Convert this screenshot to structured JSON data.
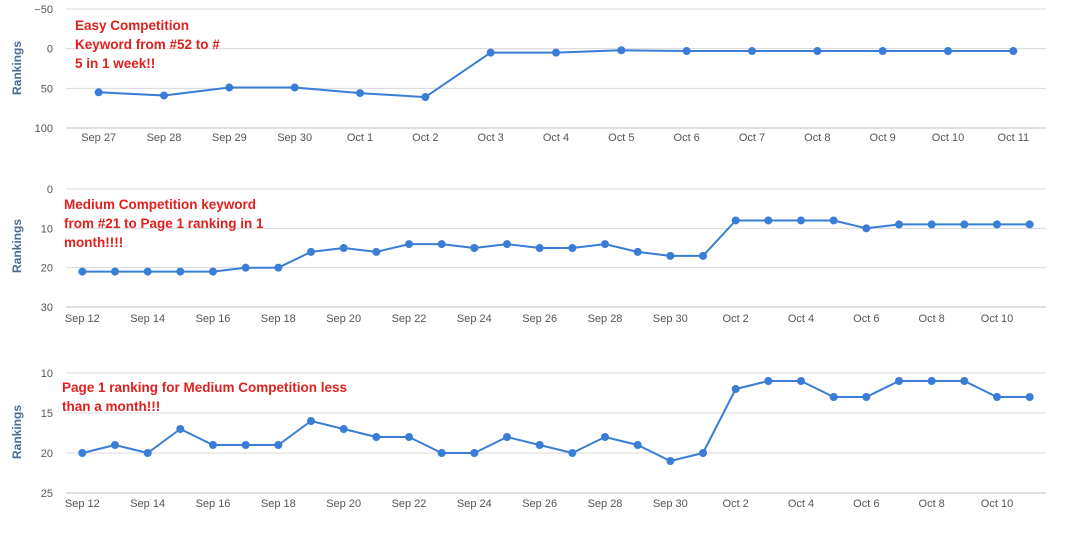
{
  "chart_data": [
    {
      "type": "line",
      "ylabel": "Rankings",
      "ylim": [
        -50,
        100
      ],
      "yticks": [
        -50,
        0,
        50,
        100
      ],
      "y_reversed": true,
      "categories": [
        "Sep 27",
        "Sep 28",
        "Sep 29",
        "Sep 30",
        "Oct 1",
        "Oct 2",
        "Oct 3",
        "Oct 4",
        "Oct 5",
        "Oct 6",
        "Oct 7",
        "Oct 8",
        "Oct 9",
        "Oct 10",
        "Oct 11"
      ],
      "tick_labels": [
        "Sep 27",
        "Sep 28",
        "Sep 29",
        "Sep 30",
        "Oct 1",
        "Oct 2",
        "Oct 3",
        "Oct 4",
        "Oct 5",
        "Oct 6",
        "Oct 7",
        "Oct 8",
        "Oct 9",
        "Oct 10",
        "Oct 11"
      ],
      "values": [
        55,
        59,
        49,
        49,
        56,
        61,
        5,
        5,
        2,
        3,
        3,
        3,
        3,
        3,
        3
      ],
      "annotation": [
        "Easy Competition",
        "Keyword from #52 to #",
        "5 in 1 week!!"
      ],
      "line_color": "#3a7dd6",
      "grid": true
    },
    {
      "type": "line",
      "ylabel": "Rankings",
      "ylim": [
        0,
        30
      ],
      "yticks": [
        0,
        10,
        20,
        30
      ],
      "y_reversed": true,
      "categories": [
        "Sep 12",
        "Sep 13",
        "Sep 14",
        "Sep 15",
        "Sep 16",
        "Sep 17",
        "Sep 18",
        "Sep 19",
        "Sep 20",
        "Sep 21",
        "Sep 22",
        "Sep 23",
        "Sep 24",
        "Sep 25",
        "Sep 26",
        "Sep 27",
        "Sep 28",
        "Sep 29",
        "Sep 30",
        "Oct 1",
        "Oct 2",
        "Oct 3",
        "Oct 4",
        "Oct 5",
        "Oct 6",
        "Oct 7",
        "Oct 8",
        "Oct 9",
        "Oct 10",
        "Oct 11"
      ],
      "tick_labels": [
        "Sep 12",
        "Sep 14",
        "Sep 16",
        "Sep 18",
        "Sep 20",
        "Sep 22",
        "Sep 24",
        "Sep 26",
        "Sep 28",
        "Sep 30",
        "Oct 2",
        "Oct 4",
        "Oct 6",
        "Oct 8",
        "Oct 10"
      ],
      "values": [
        21,
        21,
        21,
        21,
        21,
        20,
        20,
        16,
        15,
        16,
        14,
        14,
        15,
        14,
        15,
        15,
        14,
        16,
        17,
        17,
        8,
        8,
        8,
        8,
        10,
        9,
        9,
        9,
        9,
        9
      ],
      "annotation": [
        "Medium Competition keyword",
        "from #21 to Page 1 ranking in 1",
        "month!!!!"
      ],
      "line_color": "#3a7dd6",
      "grid": true
    },
    {
      "type": "line",
      "ylabel": "Rankings",
      "ylim": [
        10,
        25
      ],
      "yticks": [
        10,
        15,
        20,
        25
      ],
      "y_reversed": true,
      "categories": [
        "Sep 12",
        "Sep 13",
        "Sep 14",
        "Sep 15",
        "Sep 16",
        "Sep 17",
        "Sep 18",
        "Sep 19",
        "Sep 20",
        "Sep 21",
        "Sep 22",
        "Sep 23",
        "Sep 24",
        "Sep 25",
        "Sep 26",
        "Sep 27",
        "Sep 28",
        "Sep 29",
        "Sep 30",
        "Oct 1",
        "Oct 2",
        "Oct 3",
        "Oct 4",
        "Oct 5",
        "Oct 6",
        "Oct 7",
        "Oct 8",
        "Oct 9",
        "Oct 10",
        "Oct 11"
      ],
      "tick_labels": [
        "Sep 12",
        "Sep 14",
        "Sep 16",
        "Sep 18",
        "Sep 20",
        "Sep 22",
        "Sep 24",
        "Sep 26",
        "Sep 28",
        "Sep 30",
        "Oct 2",
        "Oct 4",
        "Oct 6",
        "Oct 8",
        "Oct 10"
      ],
      "values": [
        20,
        19,
        20,
        17,
        19,
        19,
        19,
        16,
        17,
        18,
        18,
        20,
        20,
        18,
        19,
        20,
        18,
        19,
        21,
        20,
        12,
        11,
        11,
        13,
        13,
        11,
        11,
        11,
        13,
        13
      ],
      "annotation": [
        "Page 1 ranking for Medium Competition less",
        "than a month!!!"
      ],
      "line_color": "#3a7dd6",
      "grid": true
    }
  ]
}
